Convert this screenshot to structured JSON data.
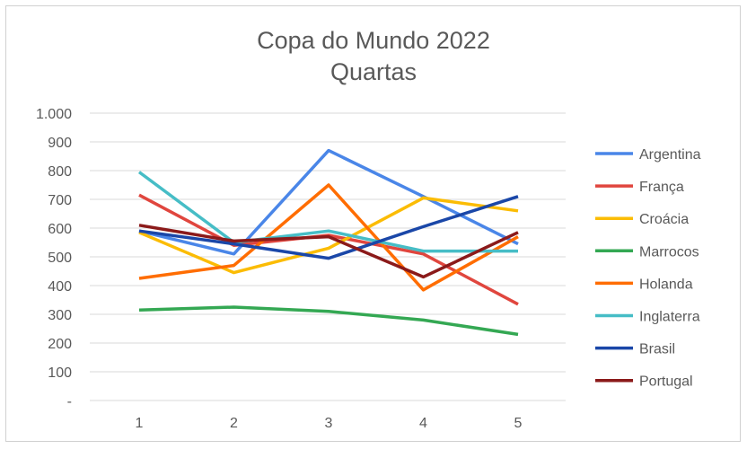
{
  "chart_data": {
    "type": "line",
    "title": "Copa do Mundo 2022",
    "subtitle": "Quartas",
    "xlabel": "",
    "ylabel": "",
    "categories": [
      "1",
      "2",
      "3",
      "4",
      "5"
    ],
    "ylim": [
      0,
      1000
    ],
    "yticks": [
      0,
      100,
      200,
      300,
      400,
      500,
      600,
      700,
      800,
      900,
      1000
    ],
    "ytick_labels": [
      "-",
      "100",
      "200",
      "300",
      "400",
      "500",
      "600",
      "700",
      "800",
      "900",
      "1.000"
    ],
    "grid": true,
    "legend_position": "right",
    "series": [
      {
        "name": "Argentina",
        "color": "#4a86e8",
        "values": [
          590,
          510,
          870,
          710,
          545
        ]
      },
      {
        "name": "França",
        "color": "#e0463e",
        "values": [
          715,
          540,
          575,
          510,
          335
        ]
      },
      {
        "name": "Croácia",
        "color": "#fbbc04",
        "values": [
          585,
          445,
          530,
          705,
          660
        ]
      },
      {
        "name": "Marrocos",
        "color": "#34a853",
        "values": [
          315,
          325,
          310,
          280,
          230
        ]
      },
      {
        "name": "Holanda",
        "color": "#ff6d01",
        "values": [
          425,
          470,
          750,
          385,
          570
        ]
      },
      {
        "name": "Inglaterra",
        "color": "#46bdc6",
        "values": [
          795,
          550,
          590,
          520,
          520
        ]
      },
      {
        "name": "Brasil",
        "color": "#1a47a8",
        "values": [
          590,
          545,
          495,
          605,
          710
        ]
      },
      {
        "name": "Portugal",
        "color": "#8b1a1a",
        "values": [
          610,
          555,
          570,
          430,
          585
        ]
      }
    ]
  }
}
